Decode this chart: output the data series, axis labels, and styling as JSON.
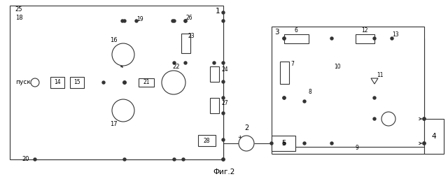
{
  "fig_width": 6.4,
  "fig_height": 2.56,
  "dpi": 100,
  "bg_color": "#ffffff",
  "line_color": "#333333",
  "lw": 0.8,
  "caption": "Фиг.2",
  "pusk_label": "пуск"
}
